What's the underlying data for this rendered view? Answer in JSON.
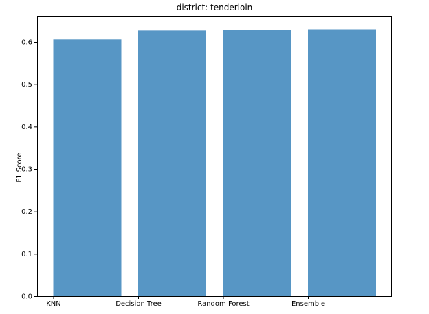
{
  "chart_data": {
    "type": "bar",
    "title": "district: tenderloin",
    "xlabel": "",
    "ylabel": "F1 Score",
    "categories": [
      "KNN",
      "Decision Tree",
      "Random Forest",
      "Ensemble"
    ],
    "values": [
      0.606,
      0.627,
      0.628,
      0.63
    ],
    "ylim": [
      0,
      0.66
    ],
    "yticks": [
      "0.0",
      "0.1",
      "0.2",
      "0.3",
      "0.4",
      "0.5",
      "0.6"
    ],
    "grid": false,
    "legend": "none",
    "bar_color": "#5796c5",
    "axis_color": "#000000"
  }
}
